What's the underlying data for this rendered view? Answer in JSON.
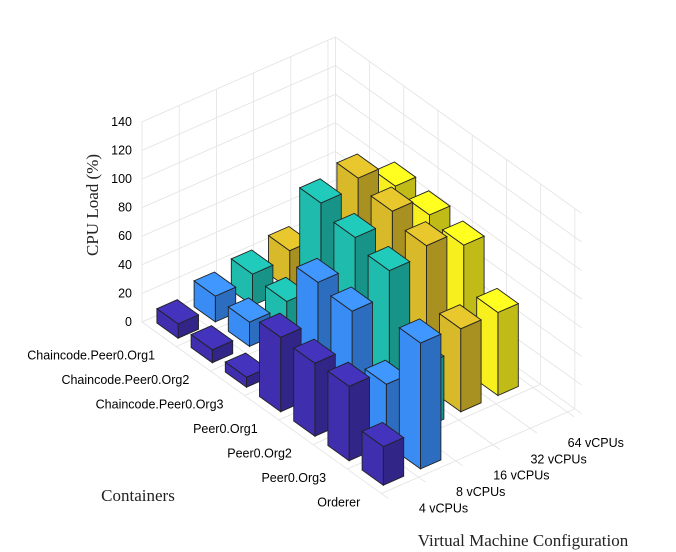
{
  "chart_data": {
    "type": "bar3d",
    "zlabel": "CPU Load (%)",
    "xlabel": "Containers",
    "ylabel": "Virtual Machine Configuration",
    "zlim": [
      0,
      140
    ],
    "zticks": [
      0,
      20,
      40,
      60,
      80,
      100,
      120,
      140
    ],
    "containers": [
      "Chaincode.Peer0.Org1",
      "Chaincode.Peer0.Org2",
      "Chaincode.Peer0.Org3",
      "Peer0.Org1",
      "Peer0.Org2",
      "Peer0.Org3",
      "Orderer"
    ],
    "series": [
      {
        "name": "4 vCPUs",
        "color": "#3f2fae",
        "values": [
          10,
          9,
          7,
          52,
          51,
          52,
          27
        ]
      },
      {
        "name": "8 vCPUs",
        "color": "#3a8cf5",
        "values": [
          18,
          17,
          16,
          79,
          76,
          42,
          88
        ]
      },
      {
        "name": "16 vCPUs",
        "color": "#1fbcad",
        "values": [
          22,
          20,
          106,
          99,
          93,
          44,
          0
        ]
      },
      {
        "name": "32 vCPUs",
        "color": "#d8b92a",
        "values": [
          27,
          24,
          112,
          106,
          99,
          58,
          0
        ]
      },
      {
        "name": "64 vCPUs",
        "color": "#f8f01e",
        "values": [
          25,
          22,
          95,
          92,
          88,
          58,
          0
        ]
      }
    ],
    "grid": true
  }
}
